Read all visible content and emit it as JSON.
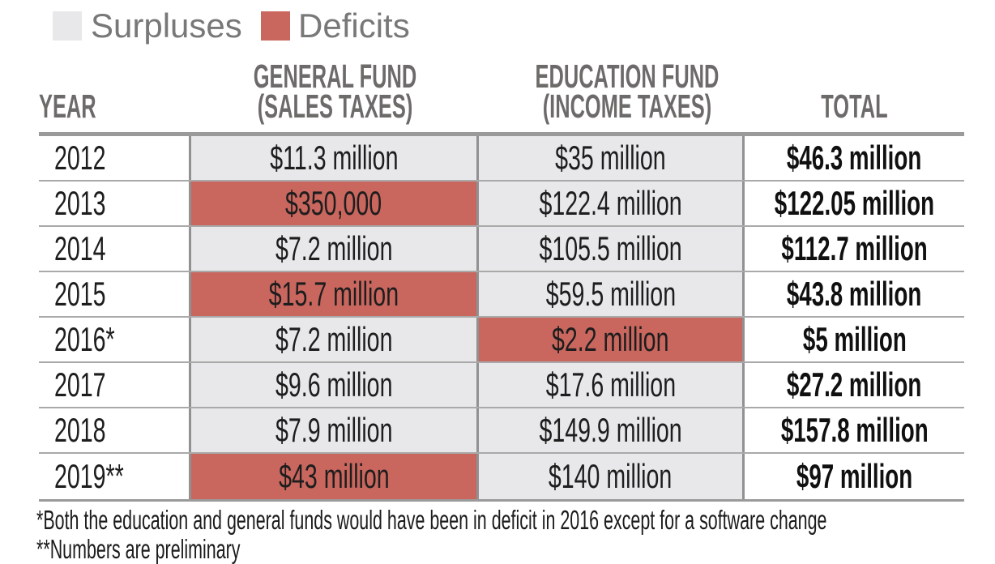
{
  "colors": {
    "surplus_fill": "#e8e8ea",
    "deficit_fill": "#c9675f",
    "table_border": "#9a9a9a",
    "header_text": "#6d6b69",
    "legend_text": "#787878"
  },
  "chart_data": {
    "type": "table",
    "legend": [
      {
        "label": "Surpluses",
        "color": "#e8e8ea"
      },
      {
        "label": "Deficits",
        "color": "#c9675f"
      }
    ],
    "headers": {
      "year": "YEAR",
      "general_fund_line1": "GENERAL FUND",
      "general_fund_line2": "(SALES TAXES)",
      "education_fund_line1": "EDUCATION FUND",
      "education_fund_line2": "(INCOME TAXES)",
      "total": "TOTAL"
    },
    "rows": [
      {
        "year": "2012",
        "general_fund": "$11.3 million",
        "general_fund_status": "surplus",
        "general_fund_musd": 11.3,
        "education_fund": "$35 million",
        "education_fund_status": "surplus",
        "education_fund_musd": 35,
        "total": "$46.3 million",
        "total_musd": 46.3
      },
      {
        "year": "2013",
        "general_fund": "$350,000",
        "general_fund_status": "deficit",
        "general_fund_musd": -0.35,
        "education_fund": "$122.4 million",
        "education_fund_status": "surplus",
        "education_fund_musd": 122.4,
        "total": "$122.05 million",
        "total_musd": 122.05
      },
      {
        "year": "2014",
        "general_fund": "$7.2 million",
        "general_fund_status": "surplus",
        "general_fund_musd": 7.2,
        "education_fund": "$105.5 million",
        "education_fund_status": "surplus",
        "education_fund_musd": 105.5,
        "total": "$112.7 million",
        "total_musd": 112.7
      },
      {
        "year": "2015",
        "general_fund": "$15.7 million",
        "general_fund_status": "deficit",
        "general_fund_musd": -15.7,
        "education_fund": "$59.5 million",
        "education_fund_status": "surplus",
        "education_fund_musd": 59.5,
        "total": "$43.8 million",
        "total_musd": 43.8
      },
      {
        "year": "2016*",
        "general_fund": "$7.2 million",
        "general_fund_status": "surplus",
        "general_fund_musd": 7.2,
        "education_fund": "$2.2 million",
        "education_fund_status": "deficit",
        "education_fund_musd": -2.2,
        "total": "$5 million",
        "total_musd": 5
      },
      {
        "year": "2017",
        "general_fund": "$9.6 million",
        "general_fund_status": "surplus",
        "general_fund_musd": 9.6,
        "education_fund": "$17.6 million",
        "education_fund_status": "surplus",
        "education_fund_musd": 17.6,
        "total": "$27.2 million",
        "total_musd": 27.2
      },
      {
        "year": "2018",
        "general_fund": "$7.9 million",
        "general_fund_status": "surplus",
        "general_fund_musd": 7.9,
        "education_fund": "$149.9 million",
        "education_fund_status": "surplus",
        "education_fund_musd": 149.9,
        "total": "$157.8 million",
        "total_musd": 157.8
      },
      {
        "year": "2019**",
        "general_fund": "$43 million",
        "general_fund_status": "deficit",
        "general_fund_musd": -43,
        "education_fund": "$140 million",
        "education_fund_status": "surplus",
        "education_fund_musd": 140,
        "total": "$97 million",
        "total_musd": 97
      }
    ],
    "footnotes": [
      "*Both the education and general funds would have been in deficit in 2016 except for a software change",
      "**Numbers are preliminary"
    ]
  }
}
